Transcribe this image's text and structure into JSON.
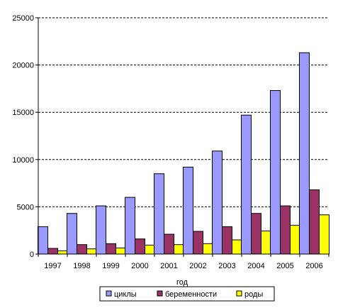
{
  "chart_data": {
    "type": "bar",
    "categories": [
      "1997",
      "1998",
      "1999",
      "2000",
      "2001",
      "2002",
      "2003",
      "2004",
      "2005",
      "2006"
    ],
    "series": [
      {
        "name": "циклы",
        "color": "#9999ff",
        "values": [
          2900,
          4300,
          5100,
          6000,
          8500,
          9200,
          10900,
          14700,
          17300,
          21300
        ]
      },
      {
        "name": "беременности",
        "color": "#993366",
        "values": [
          600,
          1000,
          1100,
          1600,
          2100,
          2400,
          2900,
          4300,
          5100,
          6800
        ]
      },
      {
        "name": "роды",
        "color": "#ffff00",
        "values": [
          350,
          550,
          650,
          950,
          1000,
          1100,
          1500,
          2450,
          3050,
          4150
        ]
      }
    ],
    "yticks": [
      "0",
      "5000",
      "10000",
      "15000",
      "20000",
      "25000"
    ],
    "ylim": [
      0,
      25000
    ],
    "xlabel": "год",
    "ylabel": "",
    "grid": true,
    "legend_position": "bottom"
  }
}
